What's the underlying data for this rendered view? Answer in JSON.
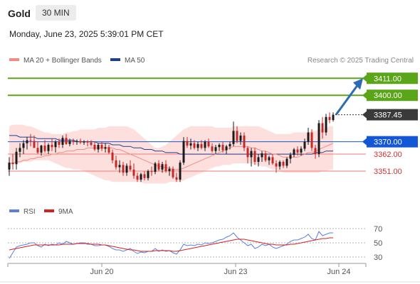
{
  "header": {
    "title": "Gold",
    "timeframe": "30 MIN",
    "datetime": "Monday, June 23, 2025 5:39:01 PM CET",
    "copyright": "Research © 2025 Trading Central"
  },
  "legend": {
    "ma20": "MA 20 + Bollinger Bands",
    "ma50": "MA 50",
    "rsi": "RSI",
    "ma9": "9MA"
  },
  "colors": {
    "up": "#1a1a1a",
    "down": "#c62828",
    "bollinger_fill": "#fde0dd",
    "ma20": "#f28b82",
    "ma50": "#1f3f8f",
    "target": "#5aa618",
    "pivot": "#1457d6",
    "support": "#f07b7b",
    "arrow": "#2d6cb5",
    "rsi": "#5b7fde",
    "rsi_ma": "#d91e1e"
  },
  "chart_data": [
    {
      "type": "candlestick",
      "title": "Gold",
      "timeframe": "30 MIN",
      "x_ticks": [
        "Jun 20",
        "Jun 23",
        "Jun 24"
      ],
      "ylim": [
        3340,
        3418
      ],
      "levels": [
        {
          "value": 3411.0,
          "label": "3411.00",
          "kind": "target"
        },
        {
          "value": 3400.0,
          "label": "3400.00",
          "kind": "target"
        },
        {
          "value": 3387.45,
          "label": "3387.45",
          "kind": "last"
        },
        {
          "value": 3370.0,
          "label": "3370.00",
          "kind": "pivot"
        },
        {
          "value": 3362.0,
          "label": "3362.00",
          "kind": "support"
        },
        {
          "value": 3351.0,
          "label": "3351.00",
          "kind": "support"
        }
      ],
      "candles": [
        [
          3352.0,
          3360.0,
          3348.0,
          3356.5
        ],
        [
          3356.5,
          3362.0,
          3352.0,
          3355.5
        ],
        [
          3355.5,
          3366.0,
          3352.0,
          3363.5
        ],
        [
          3363.5,
          3369.0,
          3360.0,
          3366.0
        ],
        [
          3366.0,
          3371.0,
          3362.0,
          3369.0
        ],
        [
          3369.0,
          3373.0,
          3365.0,
          3371.0
        ],
        [
          3371.0,
          3375.0,
          3367.0,
          3370.5
        ],
        [
          3370.5,
          3374.0,
          3366.0,
          3366.0
        ],
        [
          3366.0,
          3370.0,
          3362.0,
          3363.0
        ],
        [
          3363.0,
          3368.0,
          3361.0,
          3367.5
        ],
        [
          3367.5,
          3371.0,
          3363.0,
          3364.0
        ],
        [
          3364.0,
          3369.0,
          3362.0,
          3368.0
        ],
        [
          3368.0,
          3372.0,
          3364.0,
          3366.5
        ],
        [
          3366.5,
          3371.0,
          3363.0,
          3370.0
        ],
        [
          3370.0,
          3372.0,
          3366.0,
          3368.0
        ],
        [
          3368.0,
          3374.0,
          3366.0,
          3372.5
        ],
        [
          3372.5,
          3375.0,
          3368.0,
          3368.5
        ],
        [
          3368.5,
          3372.0,
          3367.0,
          3370.5
        ],
        [
          3370.5,
          3372.0,
          3368.0,
          3370.0
        ],
        [
          3370.0,
          3371.5,
          3368.0,
          3370.5
        ],
        [
          3370.5,
          3372.0,
          3368.5,
          3369.5
        ],
        [
          3369.5,
          3371.0,
          3368.0,
          3370.0
        ],
        [
          3370.0,
          3371.0,
          3367.0,
          3369.5
        ],
        [
          3369.5,
          3371.0,
          3367.0,
          3368.0
        ],
        [
          3368.0,
          3370.0,
          3364.0,
          3365.0
        ],
        [
          3365.0,
          3369.0,
          3363.0,
          3368.0
        ],
        [
          3368.0,
          3370.0,
          3364.0,
          3365.5
        ],
        [
          3365.5,
          3369.0,
          3363.0,
          3366.5
        ],
        [
          3366.5,
          3368.0,
          3362.0,
          3363.0
        ],
        [
          3363.0,
          3365.0,
          3356.0,
          3358.0
        ],
        [
          3358.0,
          3361.0,
          3352.0,
          3353.5
        ],
        [
          3353.5,
          3358.0,
          3350.0,
          3355.0
        ],
        [
          3355.0,
          3357.0,
          3348.0,
          3350.0
        ],
        [
          3350.0,
          3356.0,
          3348.0,
          3354.5
        ],
        [
          3354.5,
          3358.0,
          3351.0,
          3352.0
        ],
        [
          3352.0,
          3356.0,
          3346.0,
          3348.0
        ],
        [
          3348.0,
          3350.0,
          3344.0,
          3345.5
        ],
        [
          3345.5,
          3350.0,
          3344.0,
          3349.0
        ],
        [
          3349.0,
          3351.0,
          3345.0,
          3346.5
        ],
        [
          3346.5,
          3352.0,
          3345.0,
          3351.0
        ],
        [
          3351.0,
          3354.0,
          3348.0,
          3350.5
        ],
        [
          3350.5,
          3357.0,
          3349.0,
          3356.0
        ],
        [
          3356.0,
          3358.0,
          3351.0,
          3352.0
        ],
        [
          3352.0,
          3357.0,
          3350.0,
          3355.5
        ],
        [
          3355.5,
          3358.0,
          3350.0,
          3351.0
        ],
        [
          3351.0,
          3354.0,
          3348.0,
          3352.5
        ],
        [
          3352.5,
          3354.0,
          3346.0,
          3347.0
        ],
        [
          3347.0,
          3350.0,
          3344.0,
          3345.5
        ],
        [
          3345.5,
          3358.0,
          3344.0,
          3356.5
        ],
        [
          3356.5,
          3373.0,
          3355.0,
          3370.5
        ],
        [
          3370.5,
          3373.0,
          3366.0,
          3367.5
        ],
        [
          3367.5,
          3372.0,
          3365.0,
          3369.0
        ],
        [
          3369.0,
          3371.0,
          3365.0,
          3366.0
        ],
        [
          3366.0,
          3370.0,
          3364.0,
          3368.5
        ],
        [
          3368.5,
          3371.0,
          3365.0,
          3366.0
        ],
        [
          3366.0,
          3371.0,
          3364.0,
          3370.0
        ],
        [
          3370.0,
          3372.0,
          3366.0,
          3367.0
        ],
        [
          3367.0,
          3369.0,
          3363.0,
          3364.0
        ],
        [
          3364.0,
          3368.0,
          3362.0,
          3366.5
        ],
        [
          3366.5,
          3369.0,
          3364.0,
          3368.0
        ],
        [
          3368.0,
          3370.0,
          3363.0,
          3364.5
        ],
        [
          3364.5,
          3368.0,
          3362.0,
          3367.0
        ],
        [
          3367.0,
          3370.0,
          3365.0,
          3368.5
        ],
        [
          3368.5,
          3383.0,
          3367.0,
          3377.0
        ],
        [
          3377.0,
          3380.0,
          3369.0,
          3370.5
        ],
        [
          3370.5,
          3376.0,
          3368.0,
          3374.0
        ],
        [
          3374.0,
          3376.0,
          3364.0,
          3366.0
        ],
        [
          3366.0,
          3367.0,
          3356.0,
          3360.0
        ],
        [
          3360.0,
          3366.0,
          3354.0,
          3364.0
        ],
        [
          3364.0,
          3366.0,
          3355.0,
          3357.0
        ],
        [
          3357.0,
          3362.0,
          3354.0,
          3360.0
        ],
        [
          3360.0,
          3364.0,
          3357.0,
          3362.5
        ],
        [
          3362.5,
          3364.0,
          3357.0,
          3358.0
        ],
        [
          3358.0,
          3361.0,
          3355.0,
          3360.0
        ],
        [
          3360.0,
          3362.0,
          3355.0,
          3356.0
        ],
        [
          3356.0,
          3358.0,
          3350.0,
          3354.0
        ],
        [
          3354.0,
          3358.0,
          3352.0,
          3357.0
        ],
        [
          3357.0,
          3358.0,
          3353.0,
          3354.5
        ],
        [
          3354.5,
          3360.0,
          3353.0,
          3359.0
        ],
        [
          3359.0,
          3363.0,
          3356.0,
          3361.5
        ],
        [
          3361.5,
          3366.0,
          3360.0,
          3365.0
        ],
        [
          3365.0,
          3367.0,
          3361.0,
          3363.0
        ],
        [
          3363.0,
          3367.0,
          3361.0,
          3365.5
        ],
        [
          3365.5,
          3372.0,
          3364.0,
          3370.0
        ],
        [
          3370.0,
          3379.0,
          3368.0,
          3376.0
        ],
        [
          3376.0,
          3378.0,
          3364.0,
          3366.0
        ],
        [
          3366.0,
          3368.0,
          3359.0,
          3362.0
        ],
        [
          3362.0,
          3384.0,
          3360.0,
          3382.0
        ],
        [
          3382.0,
          3386.0,
          3372.0,
          3376.0
        ],
        [
          3376.0,
          3388.0,
          3374.0,
          3386.0
        ],
        [
          3386.0,
          3389.0,
          3382.0,
          3384.0
        ],
        [
          3384.0,
          3389.0,
          3383.0,
          3387.45
        ]
      ],
      "ma20": [
        3356,
        3356,
        3357,
        3357,
        3358,
        3358,
        3359,
        3359,
        3360,
        3360,
        3361,
        3361,
        3362,
        3362,
        3363,
        3363,
        3364,
        3364,
        3364,
        3365,
        3365,
        3365,
        3366,
        3366,
        3366,
        3366,
        3366,
        3366,
        3366,
        3366,
        3365,
        3365,
        3364,
        3363,
        3362,
        3361,
        3360,
        3359,
        3358,
        3357,
        3356,
        3355,
        3354,
        3354,
        3353,
        3353,
        3352,
        3352,
        3352,
        3353,
        3354,
        3355,
        3356,
        3357,
        3358,
        3359,
        3360,
        3361,
        3362,
        3363,
        3364,
        3365,
        3366,
        3367,
        3367,
        3367,
        3367,
        3367,
        3366,
        3366,
        3365,
        3364,
        3364,
        3363,
        3362,
        3362,
        3361,
        3360,
        3360,
        3360,
        3360,
        3360,
        3361,
        3362,
        3363,
        3363,
        3364,
        3365,
        3366,
        3367,
        3368,
        3369
      ],
      "ma50": [
        3374,
        3374,
        3374,
        3373,
        3373,
        3373,
        3373,
        3373,
        3372,
        3372,
        3372,
        3372,
        3372,
        3372,
        3371,
        3371,
        3371,
        3371,
        3371,
        3370,
        3370,
        3370,
        3370,
        3370,
        3370,
        3369,
        3369,
        3369,
        3369,
        3368,
        3368,
        3368,
        3367,
        3367,
        3367,
        3366,
        3366,
        3366,
        3365,
        3365,
        3365,
        3364,
        3364,
        3364,
        3363,
        3363,
        3363,
        3363,
        3362,
        3362,
        3362,
        3362,
        3362,
        3362,
        3362,
        3362,
        3362,
        3362,
        3362,
        3362,
        3362,
        3362,
        3362,
        3362,
        3362,
        3362,
        3362,
        3362,
        3362,
        3362,
        3362,
        3362,
        3362,
        3362,
        3362,
        3362,
        3362,
        3362,
        3362,
        3362,
        3362,
        3362,
        3362,
        3362,
        3362,
        3362,
        3363,
        3363,
        3363,
        3364,
        3364,
        3364
      ],
      "bollinger_upper": [
        3380,
        3381,
        3381,
        3381,
        3381,
        3380,
        3380,
        3379,
        3378,
        3377,
        3376,
        3376,
        3375,
        3375,
        3375,
        3375,
        3376,
        3376,
        3377,
        3377,
        3378,
        3378,
        3378,
        3378,
        3378,
        3379,
        3379,
        3379,
        3380,
        3380,
        3380,
        3380,
        3380,
        3380,
        3379,
        3378,
        3376,
        3374,
        3372,
        3370,
        3368,
        3366,
        3366,
        3367,
        3368,
        3370,
        3372,
        3374,
        3376,
        3378,
        3379,
        3380,
        3380,
        3380,
        3380,
        3380,
        3380,
        3380,
        3379,
        3379,
        3379,
        3379,
        3379,
        3380,
        3380,
        3380,
        3380,
        3380,
        3380,
        3380,
        3380,
        3379,
        3378,
        3377,
        3376,
        3375,
        3375,
        3375,
        3375,
        3375,
        3376,
        3376,
        3376,
        3376,
        3376,
        3377,
        3377,
        3378,
        3378,
        3379,
        3380,
        3380
      ],
      "bollinger_lower": [
        3356,
        3356,
        3356,
        3356,
        3357,
        3357,
        3357,
        3358,
        3358,
        3358,
        3358,
        3358,
        3357,
        3356,
        3355,
        3354,
        3353,
        3353,
        3352,
        3352,
        3352,
        3351,
        3350,
        3349,
        3348,
        3347,
        3346,
        3345,
        3345,
        3344,
        3344,
        3344,
        3344,
        3344,
        3344,
        3344,
        3344,
        3344,
        3343,
        3343,
        3343,
        3343,
        3343,
        3343,
        3343,
        3344,
        3344,
        3344,
        3344,
        3345,
        3346,
        3347,
        3348,
        3349,
        3350,
        3351,
        3352,
        3353,
        3354,
        3354,
        3355,
        3355,
        3355,
        3356,
        3356,
        3356,
        3356,
        3356,
        3356,
        3355,
        3355,
        3354,
        3354,
        3353,
        3352,
        3352,
        3351,
        3350,
        3350,
        3350,
        3350,
        3350,
        3350,
        3350,
        3350,
        3350,
        3350,
        3350,
        3351,
        3351,
        3352,
        3352
      ],
      "target_arrow": {
        "to": 3411.0
      }
    },
    {
      "type": "line",
      "title": "RSI",
      "ylim": [
        20,
        80
      ],
      "y_ticks": [
        70,
        50,
        30
      ],
      "series": [
        {
          "name": "RSI",
          "values": [
            28,
            36,
            44,
            46,
            47,
            48,
            50,
            50,
            46,
            44,
            48,
            46,
            48,
            47,
            50,
            48,
            52,
            50,
            48,
            49,
            50,
            50,
            48,
            48,
            46,
            46,
            47,
            47,
            45,
            42,
            40,
            40,
            38,
            40,
            42,
            38,
            35,
            37,
            36,
            38,
            38,
            42,
            38,
            40,
            38,
            39,
            36,
            34,
            40,
            48,
            46,
            47,
            46,
            48,
            47,
            50,
            49,
            50,
            52,
            54,
            55,
            58,
            60,
            64,
            58,
            54,
            50,
            46,
            48,
            42,
            44,
            48,
            46,
            48,
            44,
            42,
            44,
            46,
            48,
            52,
            54,
            54,
            56,
            58,
            62,
            56,
            54,
            66,
            60,
            62,
            64,
            64
          ]
        },
        {
          "name": "9MA",
          "values": [
            40,
            41,
            42,
            43,
            44,
            45,
            46,
            47,
            47,
            47,
            47,
            47,
            47,
            47,
            47,
            48,
            48,
            48,
            48,
            49,
            49,
            49,
            49,
            48,
            48,
            48,
            47,
            47,
            46,
            45,
            44,
            43,
            42,
            41,
            40,
            40,
            39,
            38,
            38,
            38,
            38,
            39,
            39,
            39,
            39,
            39,
            38,
            38,
            39,
            40,
            41,
            42,
            43,
            44,
            45,
            46,
            47,
            48,
            49,
            50,
            51,
            52,
            53,
            54,
            55,
            55,
            55,
            54,
            53,
            52,
            51,
            50,
            49,
            48,
            48,
            47,
            47,
            47,
            47,
            48,
            48,
            49,
            50,
            51,
            52,
            53,
            54,
            55,
            56,
            56,
            57,
            57
          ]
        }
      ]
    }
  ]
}
